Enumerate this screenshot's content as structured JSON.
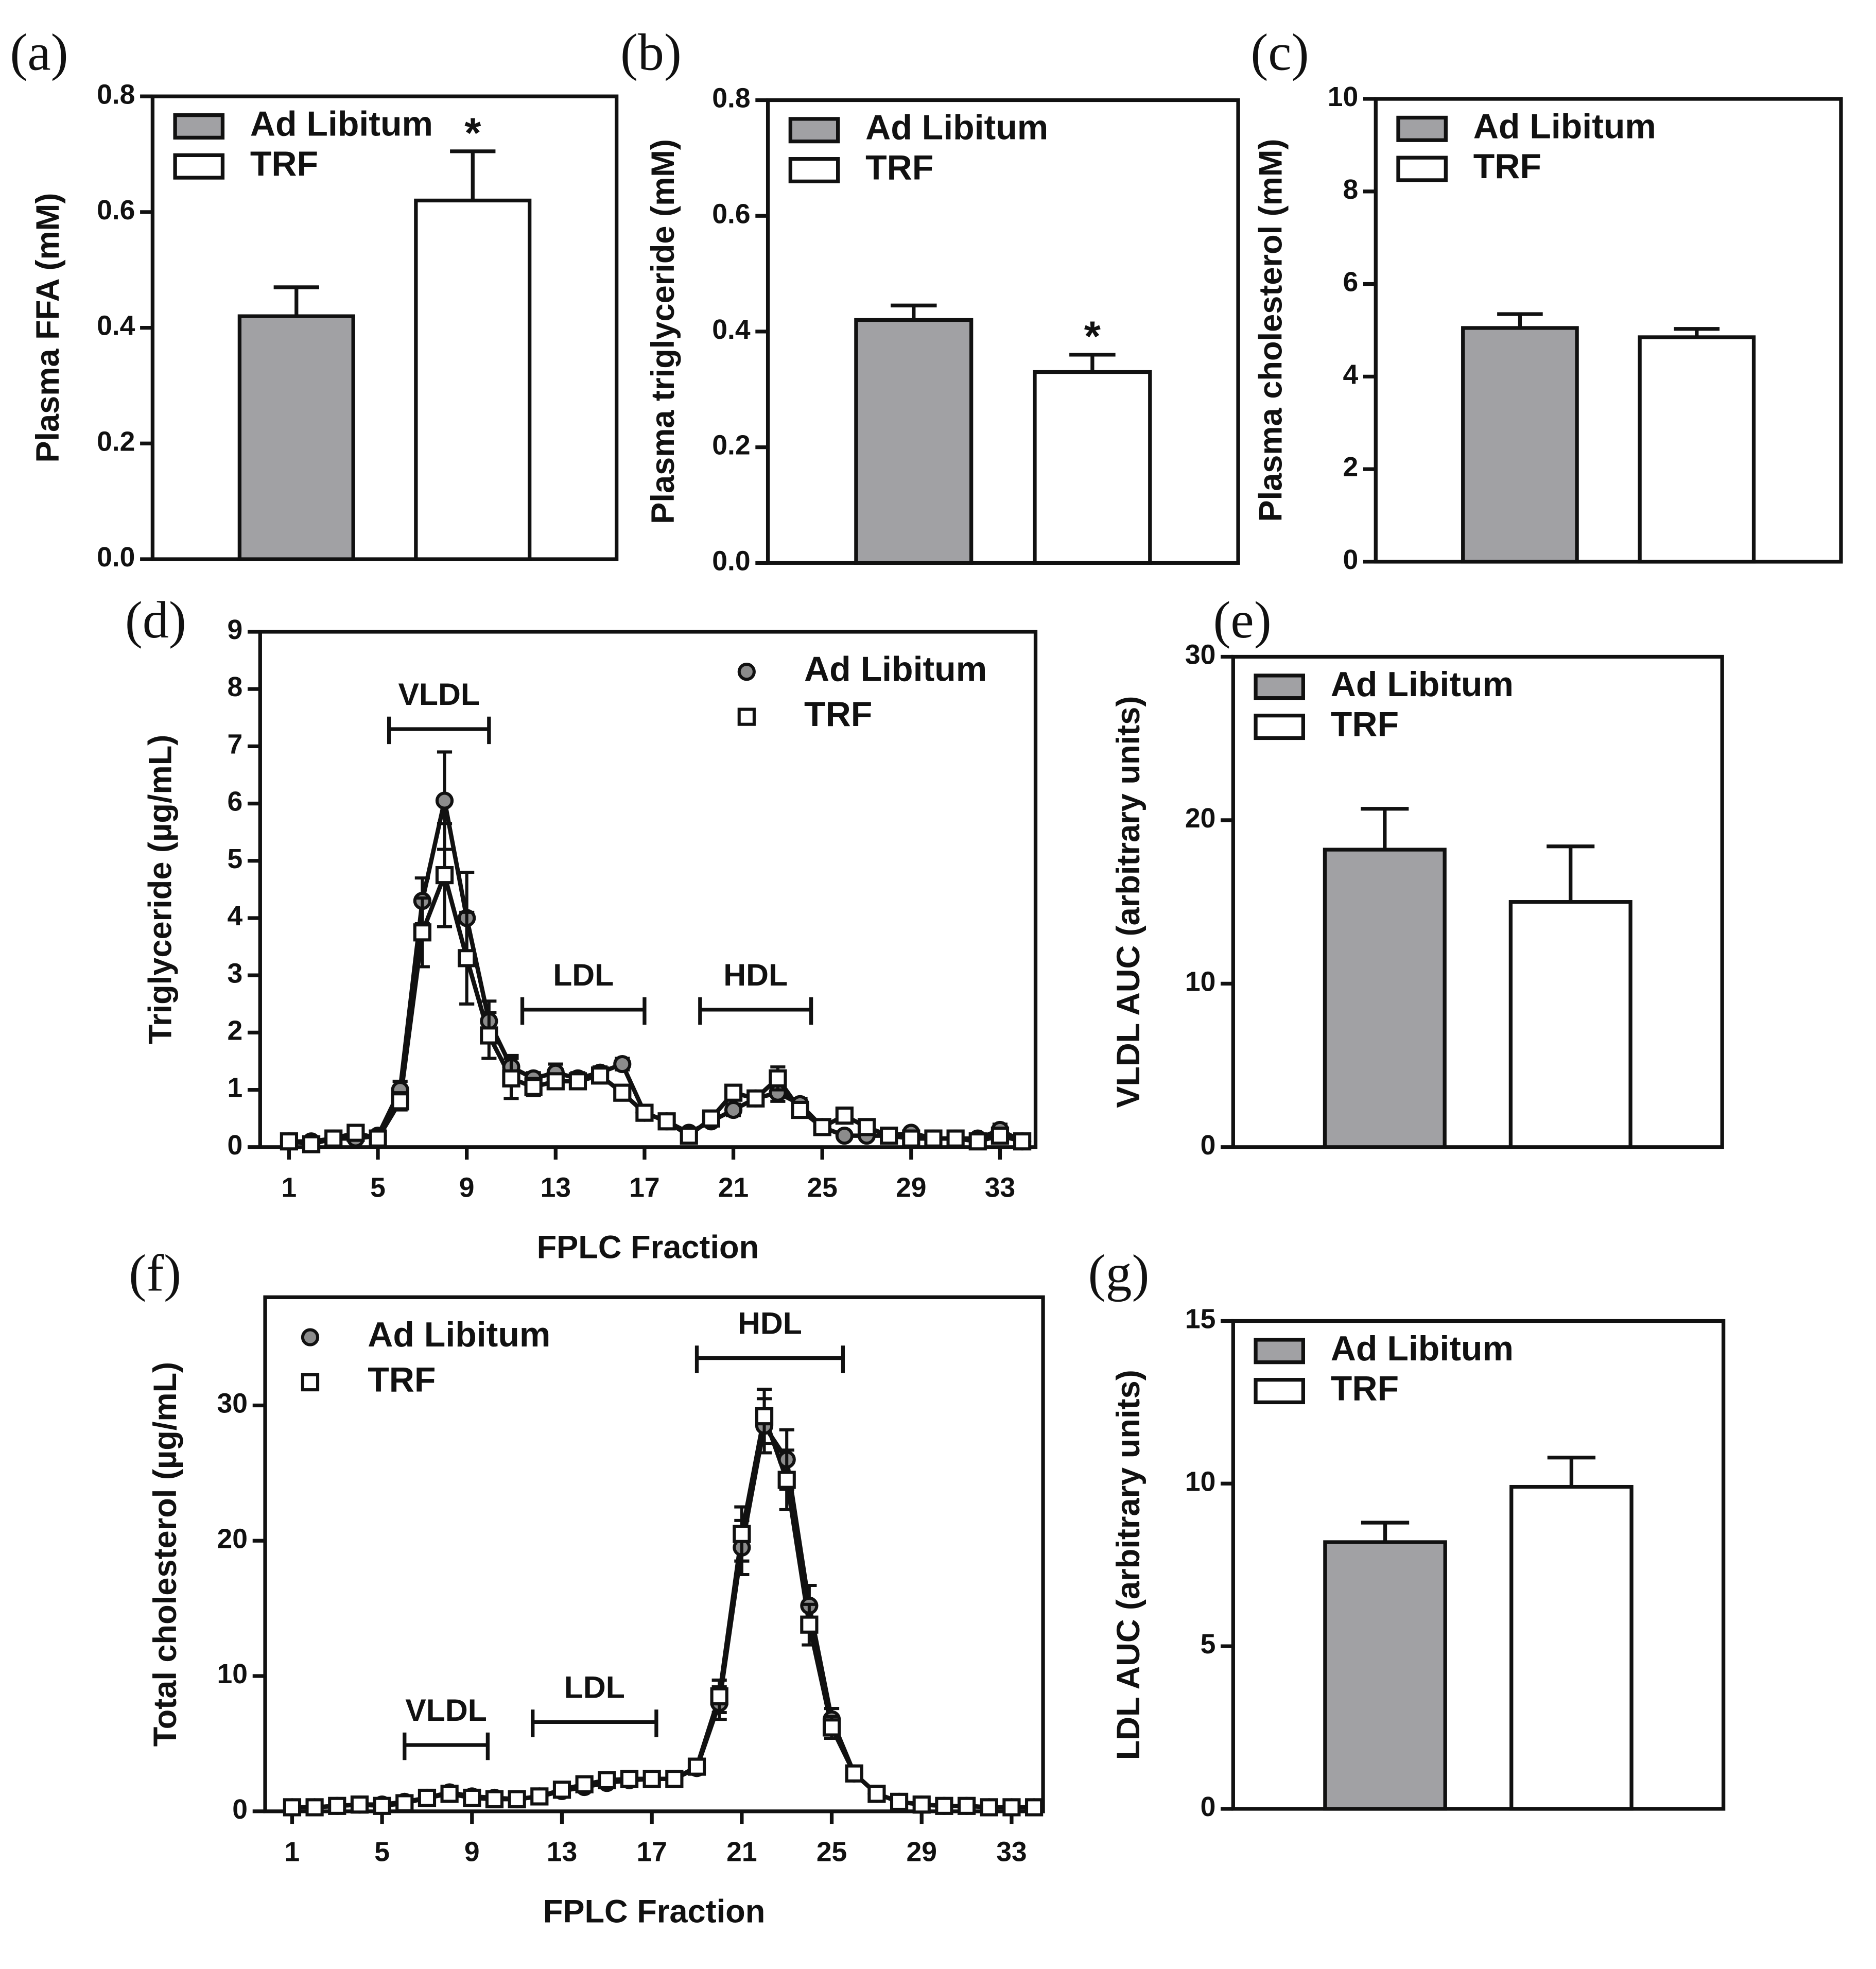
{
  "chart_data": [
    {
      "type": "bar",
      "panel_label": "(a)",
      "ylabel": "Plasma FFA (mM)",
      "ylim": [
        0,
        0.8
      ],
      "yticks": [
        {
          "value": 0,
          "label": "0.0"
        },
        0.2,
        0.4,
        0.6,
        0.8
      ],
      "series": [
        {
          "name": "Ad Libitum",
          "color": "#a1a1a4",
          "values": [
            0.42
          ],
          "errors": [
            0.05
          ]
        },
        {
          "name": "TRF",
          "color": "#ffffff",
          "values": [
            0.62
          ],
          "errors": [
            0.085
          ],
          "annotation": "*"
        }
      ]
    },
    {
      "type": "bar",
      "panel_label": "(b)",
      "ylabel": "Plasma triglyceride (mM)",
      "ylim": [
        0,
        0.8
      ],
      "yticks": [
        {
          "value": 0,
          "label": "0.0"
        },
        0.2,
        0.4,
        0.6,
        0.8
      ],
      "series": [
        {
          "name": "Ad Libitum",
          "color": "#a1a1a4",
          "values": [
            0.42
          ],
          "errors": [
            0.025
          ]
        },
        {
          "name": "TRF",
          "color": "#ffffff",
          "values": [
            0.33
          ],
          "errors": [
            0.03
          ],
          "annotation": "*"
        }
      ]
    },
    {
      "type": "bar",
      "panel_label": "(c)",
      "ylabel": "Plasma cholesterol (mM)",
      "ylim": [
        0,
        10
      ],
      "yticks": [
        0,
        2,
        4,
        6,
        8,
        10
      ],
      "series": [
        {
          "name": "Ad Libitum",
          "color": "#a1a1a4",
          "values": [
            5.05
          ],
          "errors": [
            0.3
          ]
        },
        {
          "name": "TRF",
          "color": "#ffffff",
          "values": [
            4.85
          ],
          "errors": [
            0.18
          ]
        }
      ]
    },
    {
      "type": "line",
      "panel_label": "(d)",
      "ylabel": "Triglyceride (µg/mL)",
      "xlabel": "FPLC Fraction",
      "legend": "upper right",
      "line_color": "#111111",
      "x": [
        1,
        2,
        3,
        4,
        5,
        6,
        7,
        8,
        9,
        10,
        11,
        12,
        13,
        14,
        15,
        16,
        17,
        18,
        19,
        20,
        21,
        22,
        23,
        24,
        25,
        26,
        27,
        28,
        29,
        30,
        31,
        32,
        33,
        34
      ],
      "xlim": [
        -0.3,
        34.6
      ],
      "xticks": [
        1,
        5,
        9,
        13,
        17,
        21,
        25,
        29,
        33
      ],
      "ylim": [
        0,
        9
      ],
      "yticks": [
        0,
        1,
        2,
        3,
        4,
        5,
        6,
        7,
        8,
        9
      ],
      "regions": [
        {
          "label": "VLDL",
          "x": [
            5.5,
            10
          ],
          "y": 7.3
        },
        {
          "label": "LDL",
          "x": [
            11.5,
            17
          ],
          "y": 2.4
        },
        {
          "label": "HDL",
          "x": [
            19.5,
            24.5
          ],
          "y": 2.4
        }
      ],
      "series": [
        {
          "name": "Ad Libitum",
          "color": "#8c8c8c",
          "marker": "circle",
          "values": [
            0.1,
            0.1,
            0.15,
            0.15,
            0.2,
            1.0,
            4.3,
            6.05,
            4.0,
            2.2,
            1.4,
            1.2,
            1.3,
            1.2,
            1.3,
            1.45,
            0.6,
            0.45,
            0.25,
            0.45,
            0.65,
            0.85,
            0.95,
            0.75,
            0.35,
            0.2,
            0.2,
            0.2,
            0.25,
            0.15,
            0.15,
            0.15,
            0.3,
            0.1
          ],
          "errors": [
            0.05,
            0.05,
            0.05,
            0.05,
            0.05,
            0.15,
            0.4,
            0.85,
            0.8,
            0.35,
            0.2,
            0.1,
            0.15,
            0.1,
            0.1,
            0.1,
            0.1,
            0.05,
            0.05,
            0.05,
            0.1,
            0.1,
            0.15,
            0.1,
            0.05,
            0.05,
            0.05,
            0.05,
            0.05,
            0.05,
            0.05,
            0.05,
            0.1,
            0.05
          ]
        },
        {
          "name": "TRF",
          "color": "#ffffff",
          "marker": "square",
          "values": [
            0.1,
            0.05,
            0.15,
            0.25,
            0.15,
            0.8,
            3.75,
            4.75,
            3.3,
            1.95,
            1.2,
            1.05,
            1.15,
            1.15,
            1.25,
            0.95,
            0.6,
            0.45,
            0.2,
            0.5,
            0.95,
            0.85,
            1.2,
            0.65,
            0.35,
            0.55,
            0.35,
            0.2,
            0.15,
            0.15,
            0.15,
            0.1,
            0.2,
            0.1
          ],
          "errors": [
            0.05,
            0.05,
            0.05,
            0.1,
            0.05,
            0.15,
            0.6,
            0.9,
            0.8,
            0.4,
            0.35,
            0.15,
            0.1,
            0.1,
            0.1,
            0.1,
            0.1,
            0.05,
            0.05,
            0.05,
            0.1,
            0.1,
            0.2,
            0.1,
            0.05,
            0.1,
            0.05,
            0.05,
            0.05,
            0.05,
            0.05,
            0.05,
            0.1,
            0.05
          ]
        }
      ]
    },
    {
      "type": "bar",
      "panel_label": "(e)",
      "ylabel": "VLDL AUC (arbitrary units)",
      "ylim": [
        0,
        30
      ],
      "yticks": [
        0,
        10,
        20,
        30
      ],
      "series": [
        {
          "name": "Ad Libitum",
          "color": "#a1a1a4",
          "values": [
            18.2
          ],
          "errors": [
            2.5
          ]
        },
        {
          "name": "TRF",
          "color": "#ffffff",
          "values": [
            15
          ],
          "errors": [
            3.4
          ]
        }
      ]
    },
    {
      "type": "line",
      "panel_label": "(f)",
      "ylabel": "Total cholesterol (µg/mL)",
      "xlabel": "FPLC Fraction",
      "legend": "upper left",
      "line_color": "#111111",
      "x": [
        1,
        2,
        3,
        4,
        5,
        6,
        7,
        8,
        9,
        10,
        11,
        12,
        13,
        14,
        15,
        16,
        17,
        18,
        19,
        20,
        21,
        22,
        23,
        24,
        25,
        26,
        27,
        28,
        29,
        30,
        31,
        32,
        33,
        34
      ],
      "xlim": [
        -0.2,
        34.4
      ],
      "xticks": [
        1,
        5,
        9,
        13,
        17,
        21,
        25,
        29,
        33
      ],
      "ylim": [
        0,
        38
      ],
      "yticks": [
        0,
        10,
        20,
        30
      ],
      "regions": [
        {
          "label": "VLDL",
          "x": [
            6,
            9.7
          ],
          "y": 4.9
        },
        {
          "label": "LDL",
          "x": [
            11.7,
            17.2
          ],
          "y": 6.6
        },
        {
          "label": "HDL",
          "x": [
            19,
            25.5
          ],
          "y": 33.5
        }
      ],
      "series": [
        {
          "name": "Ad Libitum",
          "color": "#8c8c8c",
          "marker": "circle",
          "values": [
            0.3,
            0.3,
            0.4,
            0.5,
            0.5,
            0.7,
            1.0,
            1.4,
            1.1,
            1.0,
            0.9,
            1.1,
            1.5,
            1.8,
            2.1,
            2.3,
            2.4,
            2.4,
            3.2,
            8.0,
            19.5,
            28.5,
            26.0,
            15.2,
            6.8,
            2.8,
            1.3,
            0.7,
            0.5,
            0.4,
            0.4,
            0.3,
            0.3,
            0.3
          ],
          "errors": [
            0.1,
            0.1,
            0.1,
            0.1,
            0.1,
            0.1,
            0.2,
            0.3,
            0.2,
            0.2,
            0.2,
            0.2,
            0.2,
            0.2,
            0.2,
            0.2,
            0.2,
            0.2,
            0.4,
            1.2,
            2.0,
            2.0,
            2.2,
            1.5,
            0.8,
            0.3,
            0.2,
            0.1,
            0.1,
            0.1,
            0.1,
            0.1,
            0.1,
            0.1
          ]
        },
        {
          "name": "TRF",
          "color": "#ffffff",
          "marker": "square",
          "values": [
            0.3,
            0.3,
            0.4,
            0.5,
            0.4,
            0.6,
            1.0,
            1.3,
            1.0,
            0.9,
            0.9,
            1.1,
            1.6,
            2.0,
            2.3,
            2.4,
            2.4,
            2.4,
            3.3,
            8.5,
            20.5,
            29.2,
            24.5,
            13.8,
            6.2,
            2.8,
            1.3,
            0.7,
            0.5,
            0.4,
            0.4,
            0.3,
            0.3,
            0.3
          ],
          "errors": [
            0.1,
            0.1,
            0.1,
            0.1,
            0.1,
            0.1,
            0.2,
            0.3,
            0.2,
            0.2,
            0.2,
            0.2,
            0.2,
            0.2,
            0.2,
            0.2,
            0.2,
            0.2,
            0.4,
            1.2,
            2.0,
            2.0,
            2.2,
            1.5,
            0.8,
            0.3,
            0.2,
            0.1,
            0.1,
            0.1,
            0.1,
            0.1,
            0.1,
            0.1
          ]
        }
      ]
    },
    {
      "type": "bar",
      "panel_label": "(g)",
      "ylabel": "LDL AUC (arbitrary units)",
      "ylim": [
        0,
        15
      ],
      "yticks": [
        0,
        5,
        10,
        15
      ],
      "series": [
        {
          "name": "Ad Libitum",
          "color": "#a1a1a4",
          "values": [
            8.2
          ],
          "errors": [
            0.6
          ]
        },
        {
          "name": "TRF",
          "color": "#ffffff",
          "values": [
            9.9
          ],
          "errors": [
            0.9
          ]
        }
      ]
    }
  ]
}
